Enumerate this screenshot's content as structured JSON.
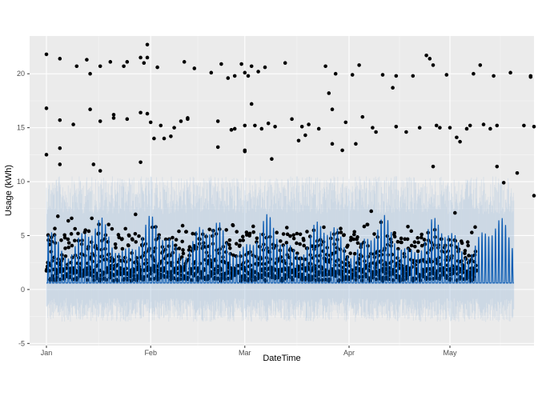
{
  "chart_data": {
    "type": "scatter",
    "title": "",
    "xlabel": "DateTime",
    "ylabel": "Usage (kWh)",
    "x_ticks": [
      "Jan",
      "Feb",
      "Mar",
      "Apr",
      "May"
    ],
    "x_tick_dates": [
      "2014-01-01",
      "2014-02-01",
      "2014-03-01",
      "2014-04-01",
      "2014-05-01"
    ],
    "xlim": [
      "2013-12-27",
      "2014-05-26"
    ],
    "ylim": [
      -5.2,
      23.5
    ],
    "y_ticks": [
      -5,
      0,
      5,
      10,
      15,
      20
    ],
    "grid": true,
    "legend": "none",
    "observed_end": "2014-05-09",
    "forecast_end": "2014-05-20",
    "series": [
      {
        "kind": "points",
        "values": [
          [
            "2014-01-01",
            21.8
          ],
          [
            "2014-01-01",
            16.8
          ],
          [
            "2014-01-01",
            12.5
          ],
          [
            "2014-01-05",
            21.4
          ],
          [
            "2014-01-05",
            15.7
          ],
          [
            "2014-01-05",
            13.1
          ],
          [
            "2014-01-05",
            11.6
          ],
          [
            "2014-01-09",
            15.3
          ],
          [
            "2014-01-10",
            20.7
          ],
          [
            "2014-01-13",
            21.3
          ],
          [
            "2014-01-14",
            16.7
          ],
          [
            "2014-01-14",
            20.0
          ],
          [
            "2014-01-15",
            11.6
          ],
          [
            "2014-01-17",
            15.6
          ],
          [
            "2014-01-17",
            11.0
          ],
          [
            "2014-01-17",
            20.7
          ],
          [
            "2014-01-20",
            21.1
          ],
          [
            "2014-01-21",
            15.9
          ],
          [
            "2014-01-21",
            16.2
          ],
          [
            "2014-01-24",
            20.7
          ],
          [
            "2014-01-25",
            21.1
          ],
          [
            "2014-01-25",
            15.8
          ],
          [
            "2014-01-29",
            21.5
          ],
          [
            "2014-01-29",
            16.4
          ],
          [
            "2014-01-29",
            11.8
          ],
          [
            "2014-01-30",
            21.0
          ],
          [
            "2014-01-31",
            22.7
          ],
          [
            "2014-01-31",
            16.3
          ],
          [
            "2014-01-31",
            21.5
          ],
          [
            "2014-02-01",
            15.5
          ],
          [
            "2014-02-02",
            14.0
          ],
          [
            "2014-02-03",
            20.6
          ],
          [
            "2014-02-04",
            15.2
          ],
          [
            "2014-02-05",
            14.0
          ],
          [
            "2014-02-07",
            14.2
          ],
          [
            "2014-02-08",
            15.0
          ],
          [
            "2014-02-10",
            15.6
          ],
          [
            "2014-02-11",
            21.1
          ],
          [
            "2014-02-12",
            15.9
          ],
          [
            "2014-02-12",
            15.8
          ],
          [
            "2014-02-14",
            20.5
          ],
          [
            "2014-02-19",
            20.1
          ],
          [
            "2014-02-21",
            15.6
          ],
          [
            "2014-02-21",
            13.2
          ],
          [
            "2014-02-22",
            20.9
          ],
          [
            "2014-02-24",
            19.6
          ],
          [
            "2014-02-25",
            14.8
          ],
          [
            "2014-02-26",
            19.8
          ],
          [
            "2014-02-26",
            14.9
          ],
          [
            "2014-02-28",
            20.9
          ],
          [
            "2014-03-01",
            12.9
          ],
          [
            "2014-03-01",
            12.8
          ],
          [
            "2014-03-01",
            15.2
          ],
          [
            "2014-03-01",
            20.1
          ],
          [
            "2014-03-02",
            19.8
          ],
          [
            "2014-03-03",
            20.7
          ],
          [
            "2014-03-03",
            17.2
          ],
          [
            "2014-03-04",
            15.2
          ],
          [
            "2014-03-05",
            20.2
          ],
          [
            "2014-03-06",
            14.9
          ],
          [
            "2014-03-07",
            20.6
          ],
          [
            "2014-03-08",
            15.4
          ],
          [
            "2014-03-09",
            12.1
          ],
          [
            "2014-03-10",
            15.1
          ],
          [
            "2014-03-13",
            21.0
          ],
          [
            "2014-03-15",
            15.8
          ],
          [
            "2014-03-17",
            13.8
          ],
          [
            "2014-03-18",
            15.1
          ],
          [
            "2014-03-19",
            14.3
          ],
          [
            "2014-03-20",
            15.3
          ],
          [
            "2014-03-23",
            14.9
          ],
          [
            "2014-03-25",
            20.7
          ],
          [
            "2014-03-26",
            18.2
          ],
          [
            "2014-03-27",
            16.7
          ],
          [
            "2014-03-27",
            13.5
          ],
          [
            "2014-03-28",
            20.0
          ],
          [
            "2014-03-30",
            12.9
          ],
          [
            "2014-03-31",
            15.5
          ],
          [
            "2014-04-02",
            19.9
          ],
          [
            "2014-04-03",
            13.5
          ],
          [
            "2014-04-04",
            20.8
          ],
          [
            "2014-04-05",
            16.0
          ],
          [
            "2014-04-08",
            15.0
          ],
          [
            "2014-04-09",
            14.6
          ],
          [
            "2014-04-11",
            19.9
          ],
          [
            "2014-04-14",
            18.7
          ],
          [
            "2014-04-15",
            15.1
          ],
          [
            "2014-04-15",
            19.8
          ],
          [
            "2014-04-18",
            14.6
          ],
          [
            "2014-04-20",
            19.8
          ],
          [
            "2014-04-22",
            15.0
          ],
          [
            "2014-04-24",
            21.7
          ],
          [
            "2014-04-25",
            21.4
          ],
          [
            "2014-04-26",
            11.4
          ],
          [
            "2014-04-26",
            20.8
          ],
          [
            "2014-04-27",
            15.2
          ],
          [
            "2014-04-28",
            15.0
          ],
          [
            "2014-04-30",
            19.9
          ],
          [
            "2014-05-01",
            15.0
          ],
          [
            "2014-05-03",
            14.1
          ],
          [
            "2014-05-04",
            13.7
          ],
          [
            "2014-05-06",
            14.9
          ],
          [
            "2014-05-07",
            15.2
          ],
          [
            "2014-05-08",
            20.0
          ],
          [
            "2014-05-10",
            20.8
          ],
          [
            "2014-05-11",
            15.3
          ],
          [
            "2014-05-13",
            14.9
          ],
          [
            "2014-05-14",
            19.8
          ],
          [
            "2014-05-15",
            11.4
          ],
          [
            "2014-05-15",
            15.2
          ],
          [
            "2014-05-17",
            9.9
          ],
          [
            "2014-05-19",
            20.1
          ],
          [
            "2014-05-21",
            10.8
          ],
          [
            "2014-05-23",
            15.2
          ],
          [
            "2014-05-25",
            19.8
          ],
          [
            "2014-05-25",
            19.7
          ],
          [
            "2014-05-26",
            15.1
          ],
          [
            "2014-05-26",
            8.7
          ]
        ]
      },
      {
        "kind": "forecast_line",
        "color": "#0a5bb3",
        "period_days": 1,
        "min": 0.6,
        "max": 7.0
      },
      {
        "kind": "uncertainty_band",
        "color": "#9ab9dc",
        "lower": -3.0,
        "upper": 10.5
      }
    ]
  }
}
